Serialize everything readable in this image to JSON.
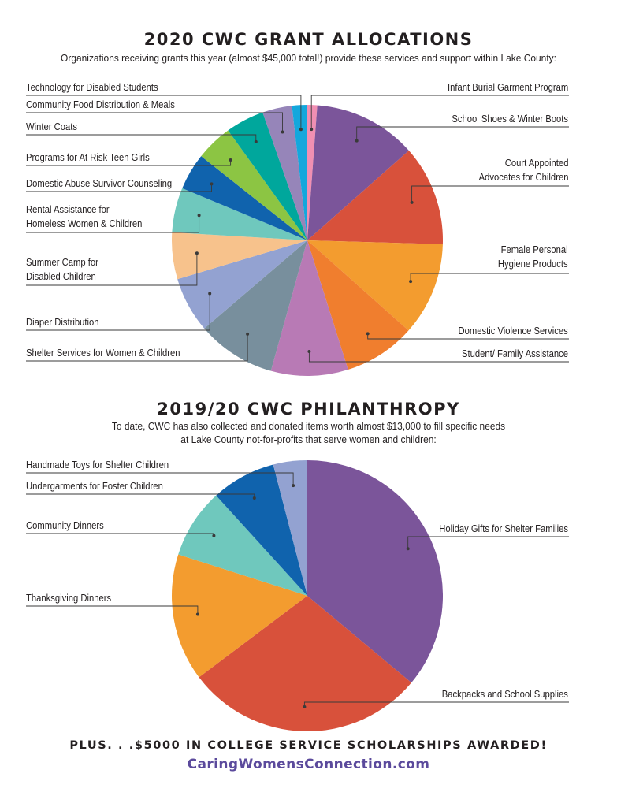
{
  "header": {
    "title": "2020 CWC GRANT ALLOCATIONS",
    "subtitle": "Organizations receiving grants this year (almost $45,000 total!) provide these services and support within Lake County:"
  },
  "section2": {
    "title": "2019/20 CWC PHILANTHROPY",
    "subtitle_line1": "To date, CWC has also collected and donated items worth almost $13,000 to fill specific needs",
    "subtitle_line2": "at Lake County not-for-profits that serve women and children:"
  },
  "footer": {
    "plus": "PLUS. . .$5000 IN COLLEGE SERVICE SCHOLARSHIPS AWARDED!",
    "website": "CaringWomensConnection.com"
  },
  "colors": {
    "title_text": "#231f20",
    "website": "#5b4a9c",
    "leader_line": "#3a3a3a"
  },
  "chart_data": [
    {
      "type": "pie",
      "title": "2020 CWC GRANT ALLOCATIONS",
      "unit": "share of grant total (%)",
      "slices": [
        {
          "label": "Infant Burial Garment Program",
          "value": 1.1,
          "color": "#f08fb2"
        },
        {
          "label": "School Shoes & Winter Boots",
          "value": 11.5,
          "color": "#7b559a"
        },
        {
          "label": "Court Appointed Advocates for Children",
          "value": 11.2,
          "color": "#d8513b"
        },
        {
          "label": "Female Personal Hygiene Products",
          "value": 10.4,
          "color": "#f39c2f"
        },
        {
          "label": "Domestic Violence Services",
          "value": 8.0,
          "color": "#f07e2e"
        },
        {
          "label": "Student/ Family Assistance",
          "value": 8.6,
          "color": "#b87ab5"
        },
        {
          "label": "Shelter Services for Women & Children",
          "value": 8.8,
          "color": "#788f9d"
        },
        {
          "label": "Diaper Distribution",
          "value": 6.2,
          "color": "#93a2d1"
        },
        {
          "label": "Summer Camp for Disabled Children",
          "value": 5.2,
          "color": "#f7c28c"
        },
        {
          "label": "Rental Assistance for Homeless Women & Children",
          "value": 5.0,
          "color": "#6fc8bd"
        },
        {
          "label": "Domestic Abuse Survivor Counseling",
          "value": 4.1,
          "color": "#1063ad"
        },
        {
          "label": "Programs for At Risk Teen Girls",
          "value": 4.1,
          "color": "#8cc543"
        },
        {
          "label": "Winter Coats",
          "value": 4.3,
          "color": "#00a79c"
        },
        {
          "label": "Community Food Distribution & Meals",
          "value": 3.3,
          "color": "#9685b9"
        },
        {
          "label": "Technology for Disabled Students",
          "value": 1.7,
          "color": "#14a7dc"
        }
      ]
    },
    {
      "type": "pie",
      "title": "2019/20 CWC PHILANTHROPY",
      "unit": "share of donated items (%)",
      "slices": [
        {
          "label": "Holiday Gifts for Shelter Families",
          "value": 35.6,
          "color": "#7b559a"
        },
        {
          "label": "Backpacks and School Supplies",
          "value": 28.3,
          "color": "#d8513b"
        },
        {
          "label": "Thanksgiving Dinners",
          "value": 15.0,
          "color": "#f39c2f"
        },
        {
          "label": "Community Dinners",
          "value": 8.2,
          "color": "#6fc8bd"
        },
        {
          "label": "Undergarments for Foster Children",
          "value": 7.6,
          "color": "#1063ad"
        },
        {
          "label": "Handmade Toys for Shelter Children",
          "value": 4.0,
          "color": "#93a2d1"
        }
      ]
    }
  ]
}
